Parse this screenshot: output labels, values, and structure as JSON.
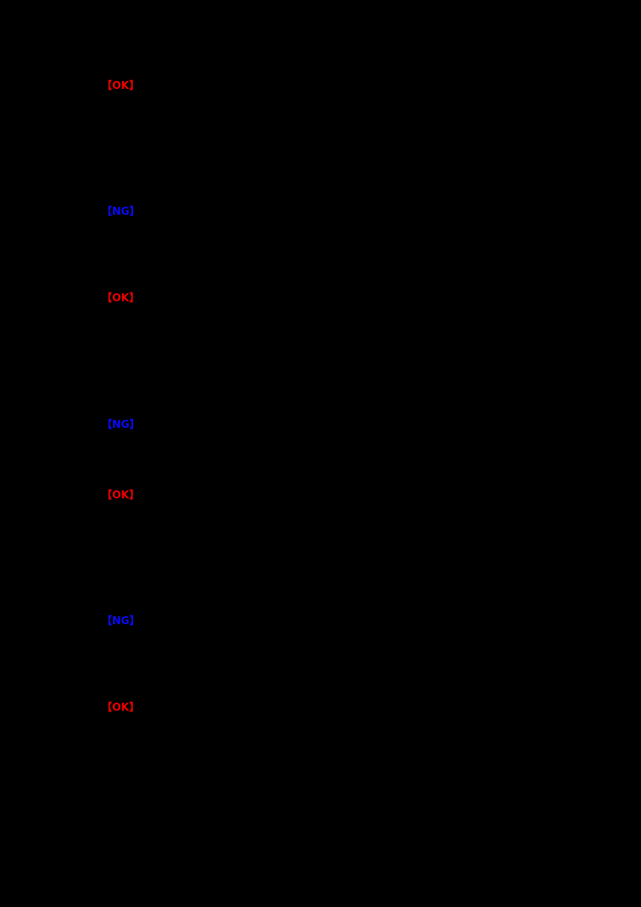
{
  "page": {
    "background_color": "#000000",
    "note_colors": {
      "ok_tag_color": "#f00000",
      "ng_tag_color": "#0a0aff"
    }
  },
  "tags": {
    "0": {
      "label": "【OK】",
      "kind": "ok",
      "color": "#f00000"
    },
    "1": {
      "label": "【NG】",
      "kind": "ng",
      "color": "#0a0aff"
    },
    "2": {
      "label": "【OK】",
      "kind": "ok",
      "color": "#f00000"
    },
    "3": {
      "label": "【NG】",
      "kind": "ng",
      "color": "#0a0aff"
    },
    "4": {
      "label": "【OK】",
      "kind": "ok",
      "color": "#f00000"
    },
    "5": {
      "label": "【NG】",
      "kind": "ng",
      "color": "#0a0aff"
    },
    "6": {
      "label": "【OK】",
      "kind": "ok",
      "color": "#f00000"
    }
  }
}
